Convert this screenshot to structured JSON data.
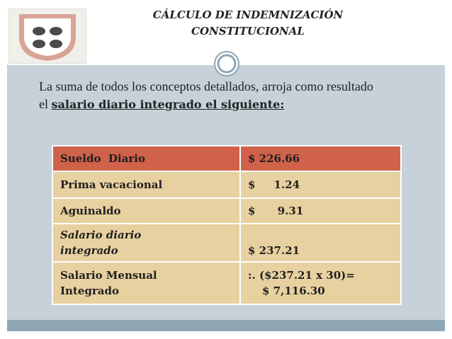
{
  "header": {
    "title": [
      "CÁLCULO DE INDEMNIZACIÓN",
      "CONSTITUCIONAL"
    ]
  },
  "intro": {
    "text": "La suma de todos los conceptos detallados,  arroja como resultado el ",
    "emphasis": "salario diario integrado el siguiente:"
  },
  "table": {
    "rows": [
      [
        [
          "Sueldo  Diario"
        ],
        [
          "$ 226.66"
        ]
      ],
      [
        [
          "Prima vacacional"
        ],
        [
          "$     1.24"
        ]
      ],
      [
        [
          "Aguinaldo"
        ],
        [
          "$      9.31"
        ]
      ],
      [
        [
          "Salario diario",
          "integrado"
        ],
        [
          "$ 237.21"
        ]
      ],
      [
        [
          "Salario Mensual",
          "Integrado"
        ],
        [
          ":. ($237.21 x 30)=",
          "$ 7,116.30"
        ]
      ]
    ]
  }
}
